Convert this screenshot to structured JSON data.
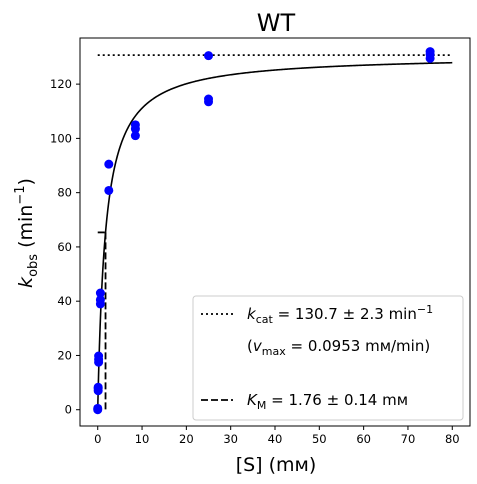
{
  "chart_data": {
    "type": "scatter",
    "title": "WT",
    "xlabel": {
      "main": "[S] (",
      "unit": "mм",
      "close": ")"
    },
    "ylabel": {
      "k": "k",
      "sub": "obs",
      "unit": " (min",
      "sup": "−1",
      "close": ")"
    },
    "xlim": [
      -4,
      84
    ],
    "ylim": [
      -6,
      137
    ],
    "x_ticks": [
      0,
      10,
      20,
      30,
      40,
      50,
      60,
      70,
      80
    ],
    "y_ticks": [
      0,
      20,
      40,
      60,
      80,
      100,
      120
    ],
    "grid": false,
    "series": [
      {
        "type": "scatter",
        "color": "#0000ff",
        "points": [
          [
            0,
            0
          ],
          [
            0,
            0.5
          ],
          [
            0.1,
            7
          ],
          [
            0.1,
            7.8
          ],
          [
            0.1,
            8.3
          ],
          [
            0.2,
            17.5
          ],
          [
            0.2,
            18.5
          ],
          [
            0.2,
            19.8
          ],
          [
            0.6,
            39
          ],
          [
            0.6,
            40.5
          ],
          [
            0.6,
            43
          ],
          [
            2.5,
            80.8
          ],
          [
            2.5,
            90.5
          ],
          [
            8.5,
            101
          ],
          [
            8.5,
            103.5
          ],
          [
            8.5,
            105
          ],
          [
            25,
            113.5
          ],
          [
            25,
            114.5
          ],
          [
            25,
            130.5
          ],
          [
            75,
            129.5
          ],
          [
            75,
            131
          ],
          [
            75,
            132
          ]
        ]
      },
      {
        "type": "fit-curve",
        "color": "#000000",
        "model": "michaelis-menten",
        "kcat": 130.7,
        "km": 1.76,
        "x_range": [
          0,
          80
        ]
      },
      {
        "type": "hline",
        "style": "dotted",
        "color": "#000000",
        "y": 130.7,
        "x_range": [
          0,
          80
        ]
      },
      {
        "type": "km-marker",
        "style": "dashed",
        "color": "#000000",
        "x": 1.76,
        "y_top": 65.35,
        "hline_x_range": [
          0,
          1.76
        ]
      }
    ],
    "legend": {
      "placement": "lower-right",
      "entries": [
        {
          "style": "dotted",
          "k": "k",
          "sub": "cat",
          "value": " = 130.7 ± 2.3 min",
          "sup": "−1"
        },
        {
          "style": "none",
          "open": "(",
          "v": "v",
          "sub": "max",
          "value": " = 0.0953 mм/min)"
        },
        {
          "style": "dashed",
          "k": "K",
          "sub": "M",
          "value": " = 1.76 ± 0.14 mм"
        }
      ]
    }
  }
}
